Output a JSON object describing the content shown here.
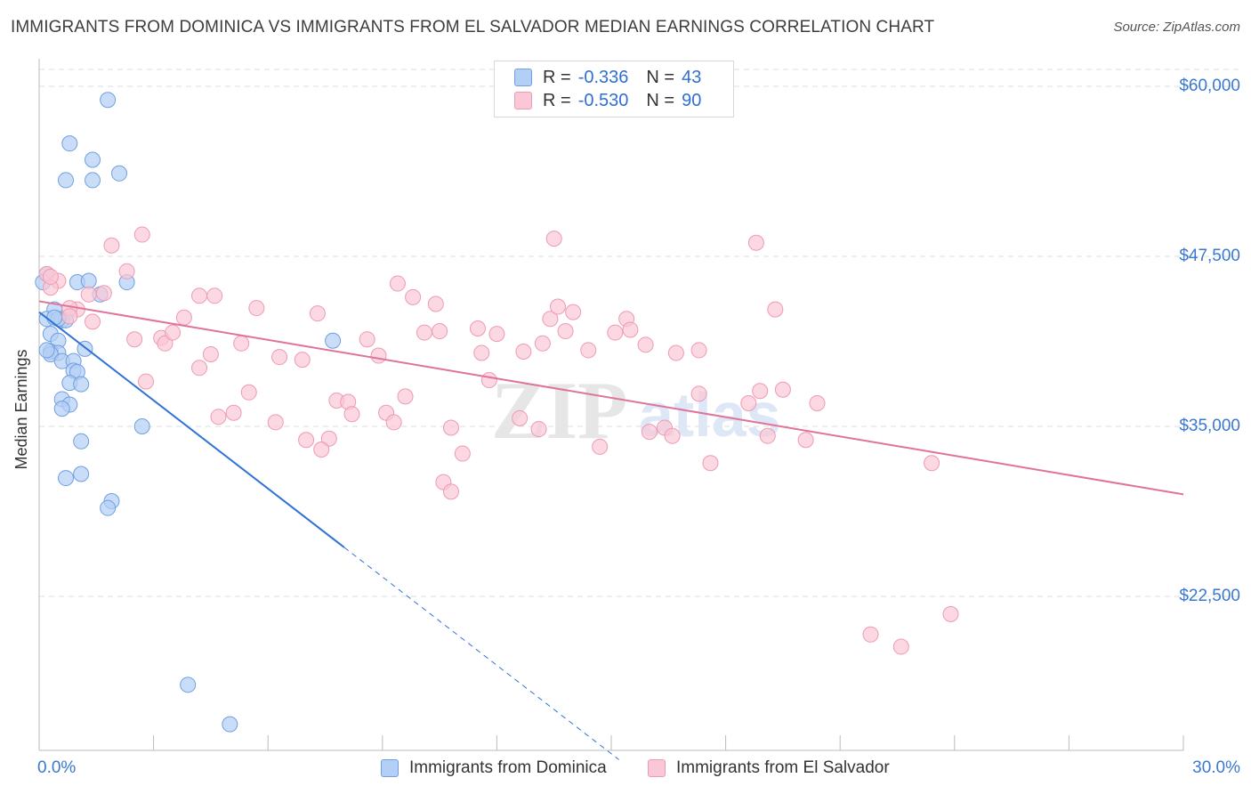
{
  "title": "IMMIGRANTS FROM DOMINICA VS IMMIGRANTS FROM EL SALVADOR MEDIAN EARNINGS CORRELATION CHART",
  "source": "Source: ZipAtlas.com",
  "watermark": {
    "zip": "ZIP",
    "atlas": "atlas"
  },
  "legend": {
    "r_label": "R =",
    "n_label": "N =",
    "rows": [
      {
        "r": "-0.336",
        "n": "43"
      },
      {
        "r": "-0.530",
        "n": "90"
      }
    ]
  },
  "colors": {
    "blue_fill": "#b3cff5",
    "blue_stroke": "#6f9fe0",
    "blue_line": "#2f72d6",
    "pink_fill": "#f9c7d6",
    "pink_stroke": "#ee9ab4",
    "pink_line": "#e0739a",
    "tick_text": "#3a78d0",
    "grid": "#dddddd"
  },
  "chart_data": {
    "type": "scatter",
    "title": "IMMIGRANTS FROM DOMINICA VS IMMIGRANTS FROM EL SALVADOR MEDIAN EARNINGS CORRELATION CHART",
    "xlabel": "",
    "ylabel": "Median Earnings",
    "xlim": [
      0,
      30
    ],
    "ylim": [
      10500,
      61500
    ],
    "x_tick_labels": [
      "0.0%",
      "30.0%"
    ],
    "y_ticks": [
      22500,
      35000,
      47500,
      60000
    ],
    "y_tick_labels": [
      "$22,500",
      "$35,000",
      "$47,500",
      "$60,000"
    ],
    "grid": true,
    "legend_position": "bottom",
    "series": [
      {
        "name": "Immigrants from Dominica",
        "color": "#b3cff5",
        "points": [
          [
            0.2,
            46.2
          ],
          [
            0.1,
            45.6
          ],
          [
            0.4,
            43.6
          ],
          [
            0.2,
            42.9
          ],
          [
            0.6,
            42.8
          ],
          [
            0.3,
            41.8
          ],
          [
            0.5,
            41.3
          ],
          [
            0.3,
            40.5
          ],
          [
            0.5,
            40.4
          ],
          [
            0.3,
            40.3
          ],
          [
            0.6,
            39.8
          ],
          [
            0.9,
            39.8
          ],
          [
            0.9,
            39.1
          ],
          [
            1.0,
            39.0
          ],
          [
            0.8,
            38.2
          ],
          [
            0.6,
            37.0
          ],
          [
            0.8,
            36.6
          ],
          [
            0.6,
            36.3
          ],
          [
            1.1,
            38.1
          ],
          [
            1.2,
            40.7
          ],
          [
            0.7,
            42.8
          ],
          [
            1.0,
            45.6
          ],
          [
            1.3,
            45.7
          ],
          [
            1.6,
            44.7
          ],
          [
            2.3,
            45.6
          ],
          [
            0.8,
            55.8
          ],
          [
            1.4,
            54.6
          ],
          [
            2.1,
            53.6
          ],
          [
            0.7,
            53.1
          ],
          [
            1.4,
            53.1
          ],
          [
            1.8,
            59.0
          ],
          [
            1.1,
            33.9
          ],
          [
            0.7,
            31.2
          ],
          [
            1.1,
            31.5
          ],
          [
            2.7,
            35.0
          ],
          [
            1.9,
            29.5
          ],
          [
            1.8,
            29.0
          ],
          [
            7.7,
            41.3
          ],
          [
            3.9,
            16.0
          ],
          [
            5.0,
            13.1
          ],
          [
            0.2,
            40.6
          ],
          [
            0.5,
            42.9
          ],
          [
            0.4,
            43.0
          ]
        ]
      },
      {
        "name": "Immigrants from El Salvador",
        "color": "#f9c7d6",
        "points": [
          [
            0.2,
            46.2
          ],
          [
            0.5,
            45.7
          ],
          [
            0.3,
            45.2
          ],
          [
            1.0,
            43.6
          ],
          [
            0.8,
            43.7
          ],
          [
            0.8,
            43.1
          ],
          [
            1.3,
            44.7
          ],
          [
            1.7,
            44.8
          ],
          [
            1.4,
            42.7
          ],
          [
            2.3,
            46.4
          ],
          [
            1.9,
            48.3
          ],
          [
            2.7,
            49.1
          ],
          [
            3.2,
            41.5
          ],
          [
            2.5,
            41.4
          ],
          [
            2.8,
            38.3
          ],
          [
            3.3,
            41.1
          ],
          [
            3.5,
            41.9
          ],
          [
            3.8,
            43.0
          ],
          [
            4.2,
            44.6
          ],
          [
            4.6,
            44.6
          ],
          [
            4.5,
            40.3
          ],
          [
            4.2,
            39.3
          ],
          [
            4.7,
            35.7
          ],
          [
            5.1,
            36.0
          ],
          [
            5.3,
            41.1
          ],
          [
            5.7,
            43.7
          ],
          [
            5.5,
            37.5
          ],
          [
            6.2,
            35.3
          ],
          [
            6.3,
            40.1
          ],
          [
            6.9,
            39.9
          ],
          [
            7.0,
            34.0
          ],
          [
            7.3,
            43.3
          ],
          [
            7.6,
            34.1
          ],
          [
            7.4,
            33.3
          ],
          [
            7.8,
            36.9
          ],
          [
            8.1,
            36.8
          ],
          [
            8.2,
            35.9
          ],
          [
            8.6,
            41.4
          ],
          [
            8.9,
            40.2
          ],
          [
            9.1,
            36.0
          ],
          [
            9.3,
            35.3
          ],
          [
            9.6,
            37.2
          ],
          [
            9.4,
            45.5
          ],
          [
            9.8,
            44.5
          ],
          [
            10.1,
            41.9
          ],
          [
            10.4,
            44.0
          ],
          [
            10.5,
            42.0
          ],
          [
            10.8,
            34.9
          ],
          [
            10.6,
            30.9
          ],
          [
            10.8,
            30.2
          ],
          [
            11.1,
            33.0
          ],
          [
            11.5,
            42.2
          ],
          [
            11.6,
            40.4
          ],
          [
            12.0,
            41.8
          ],
          [
            11.8,
            38.4
          ],
          [
            12.6,
            35.6
          ],
          [
            12.7,
            40.5
          ],
          [
            13.1,
            34.8
          ],
          [
            13.2,
            41.1
          ],
          [
            13.4,
            42.9
          ],
          [
            13.6,
            43.8
          ],
          [
            13.5,
            48.8
          ],
          [
            13.8,
            42.0
          ],
          [
            14.0,
            43.4
          ],
          [
            14.4,
            40.6
          ],
          [
            14.7,
            33.5
          ],
          [
            15.1,
            41.9
          ],
          [
            15.4,
            42.9
          ],
          [
            15.5,
            42.1
          ],
          [
            15.9,
            41.0
          ],
          [
            16.0,
            34.6
          ],
          [
            16.4,
            34.9
          ],
          [
            16.6,
            34.3
          ],
          [
            16.7,
            40.4
          ],
          [
            17.3,
            40.6
          ],
          [
            17.3,
            37.4
          ],
          [
            17.6,
            32.3
          ],
          [
            18.6,
            36.7
          ],
          [
            19.1,
            34.3
          ],
          [
            18.8,
            48.5
          ],
          [
            18.9,
            37.6
          ],
          [
            19.3,
            43.6
          ],
          [
            19.5,
            37.7
          ],
          [
            20.1,
            34.0
          ],
          [
            20.4,
            36.7
          ],
          [
            23.4,
            32.3
          ],
          [
            23.9,
            21.2
          ],
          [
            21.8,
            19.7
          ],
          [
            22.6,
            18.8
          ],
          [
            0.3,
            46.0
          ]
        ]
      }
    ],
    "trendlines": [
      {
        "series": "Immigrants from Dominica",
        "x": [
          0.0,
          8.0
        ],
        "y": [
          43.4,
          26.1
        ],
        "dashed_to": [
          15.2,
          10.5
        ]
      },
      {
        "series": "Immigrants from El Salvador",
        "x": [
          0.0,
          30.0
        ],
        "y": [
          44.2,
          30.0
        ]
      }
    ],
    "y_units": "thousands of USD"
  },
  "bottom_legend": [
    "Immigrants from Dominica",
    "Immigrants from El Salvador"
  ]
}
